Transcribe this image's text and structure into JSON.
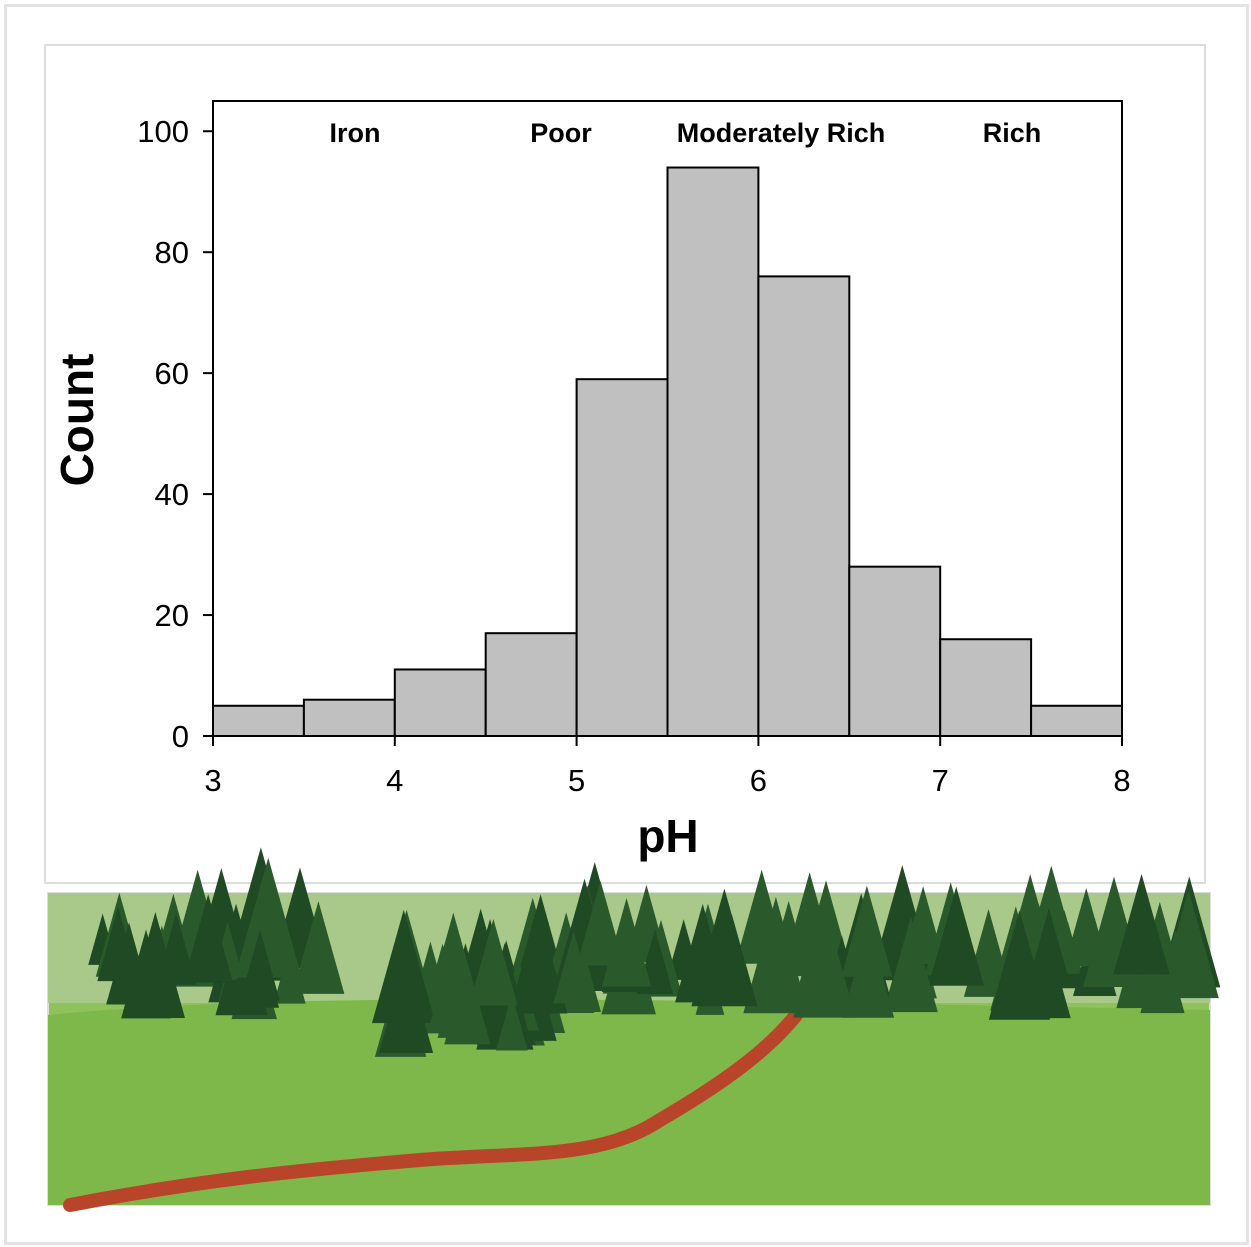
{
  "chart_data": {
    "type": "histogram",
    "xlabel": "pH",
    "ylabel": "Count",
    "bins": [
      3,
      3.5,
      4,
      4.5,
      5,
      5.5,
      6,
      6.5,
      7,
      7.5,
      8
    ],
    "counts": [
      5,
      6,
      11,
      17,
      59,
      94,
      76,
      28,
      16,
      5
    ],
    "color": "#c0c0c0",
    "xlim": [
      3,
      8
    ],
    "xticks": [
      3,
      4,
      5,
      6,
      7,
      8
    ],
    "ylim": [
      0,
      105
    ],
    "yticks": [
      0,
      20,
      40,
      60,
      80,
      100
    ],
    "annotations": [
      "Iron",
      "Poor",
      "Moderately Rich",
      "Rich"
    ]
  }
}
